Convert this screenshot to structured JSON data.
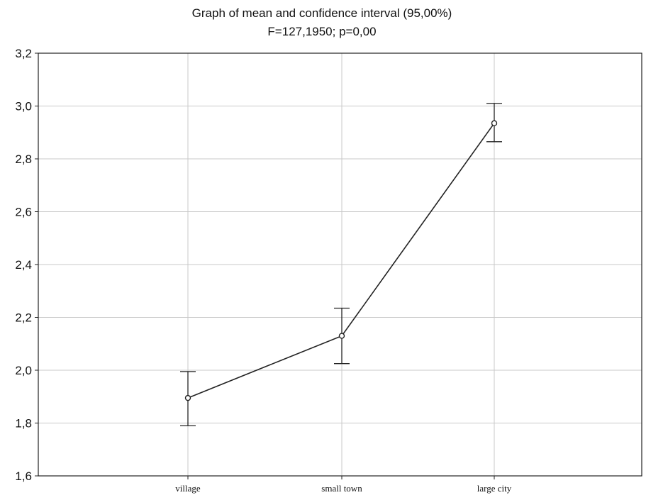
{
  "chart_data": {
    "type": "line",
    "title": "Graph of mean and confidence interval (95,00%)",
    "subtitle": "F=127,1950; p=0,00",
    "xlabel": "",
    "ylabel": "",
    "categories": [
      "village",
      "small town",
      "large city"
    ],
    "series": [
      {
        "values": [
          1.895,
          2.13,
          2.935
        ],
        "ci_lower": [
          1.79,
          2.025,
          2.865
        ],
        "ci_upper": [
          1.995,
          2.235,
          3.01
        ]
      }
    ],
    "ylim": [
      1.6,
      3.2
    ],
    "yticks": [
      1.6,
      1.8,
      2.0,
      2.2,
      2.4,
      2.6,
      2.8,
      3.0,
      3.2
    ],
    "ytick_labels": [
      "1,6",
      "1,8",
      "2,0",
      "2,2",
      "2,4",
      "2,6",
      "2,8",
      "3,0",
      "3,2"
    ],
    "grid": true,
    "legend": "none",
    "colors": {
      "line": "#222222",
      "grid": "#c8c8c8",
      "axis": "#222222"
    }
  }
}
